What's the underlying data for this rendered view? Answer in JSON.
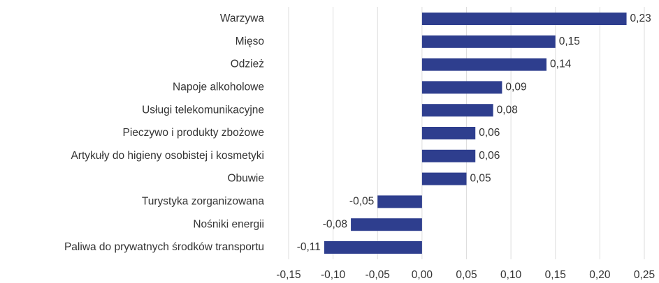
{
  "chart_data": {
    "type": "bar",
    "orientation": "horizontal",
    "categories": [
      "Warzywa",
      "Mięso",
      "Odzież",
      "Napoje alkoholowe",
      "Usługi telekomunikacyjne",
      "Pieczywo i produkty zbożowe",
      "Artykuły do higieny osobistej i kosmetyki",
      "Obuwie",
      "Turystyka zorganizowana",
      "Nośniki energii",
      "Paliwa do prywatnych środków transportu"
    ],
    "values": [
      0.23,
      0.15,
      0.14,
      0.09,
      0.08,
      0.06,
      0.06,
      0.05,
      -0.05,
      -0.08,
      -0.11
    ],
    "value_labels": [
      "0,23",
      "0,15",
      "0,14",
      "0,09",
      "0,08",
      "0,06",
      "0,06",
      "0,05",
      "-0,05",
      "-0,08",
      "-0,11"
    ],
    "color": "#2e3e8e",
    "xlim": [
      -0.15,
      0.25
    ],
    "xticks": [
      {
        "value": -0.15,
        "label": "-0,15"
      },
      {
        "value": -0.1,
        "label": "-0,10"
      },
      {
        "value": -0.05,
        "label": "-0,05"
      },
      {
        "value": 0,
        "label": "0,00"
      },
      {
        "value": 0.05,
        "label": "0,05"
      },
      {
        "value": 0.1,
        "label": "0,10"
      },
      {
        "value": 0.15,
        "label": "0,15"
      },
      {
        "value": 0.2,
        "label": "0,20"
      },
      {
        "value": 0.25,
        "label": "0,25"
      }
    ],
    "grid": true
  }
}
